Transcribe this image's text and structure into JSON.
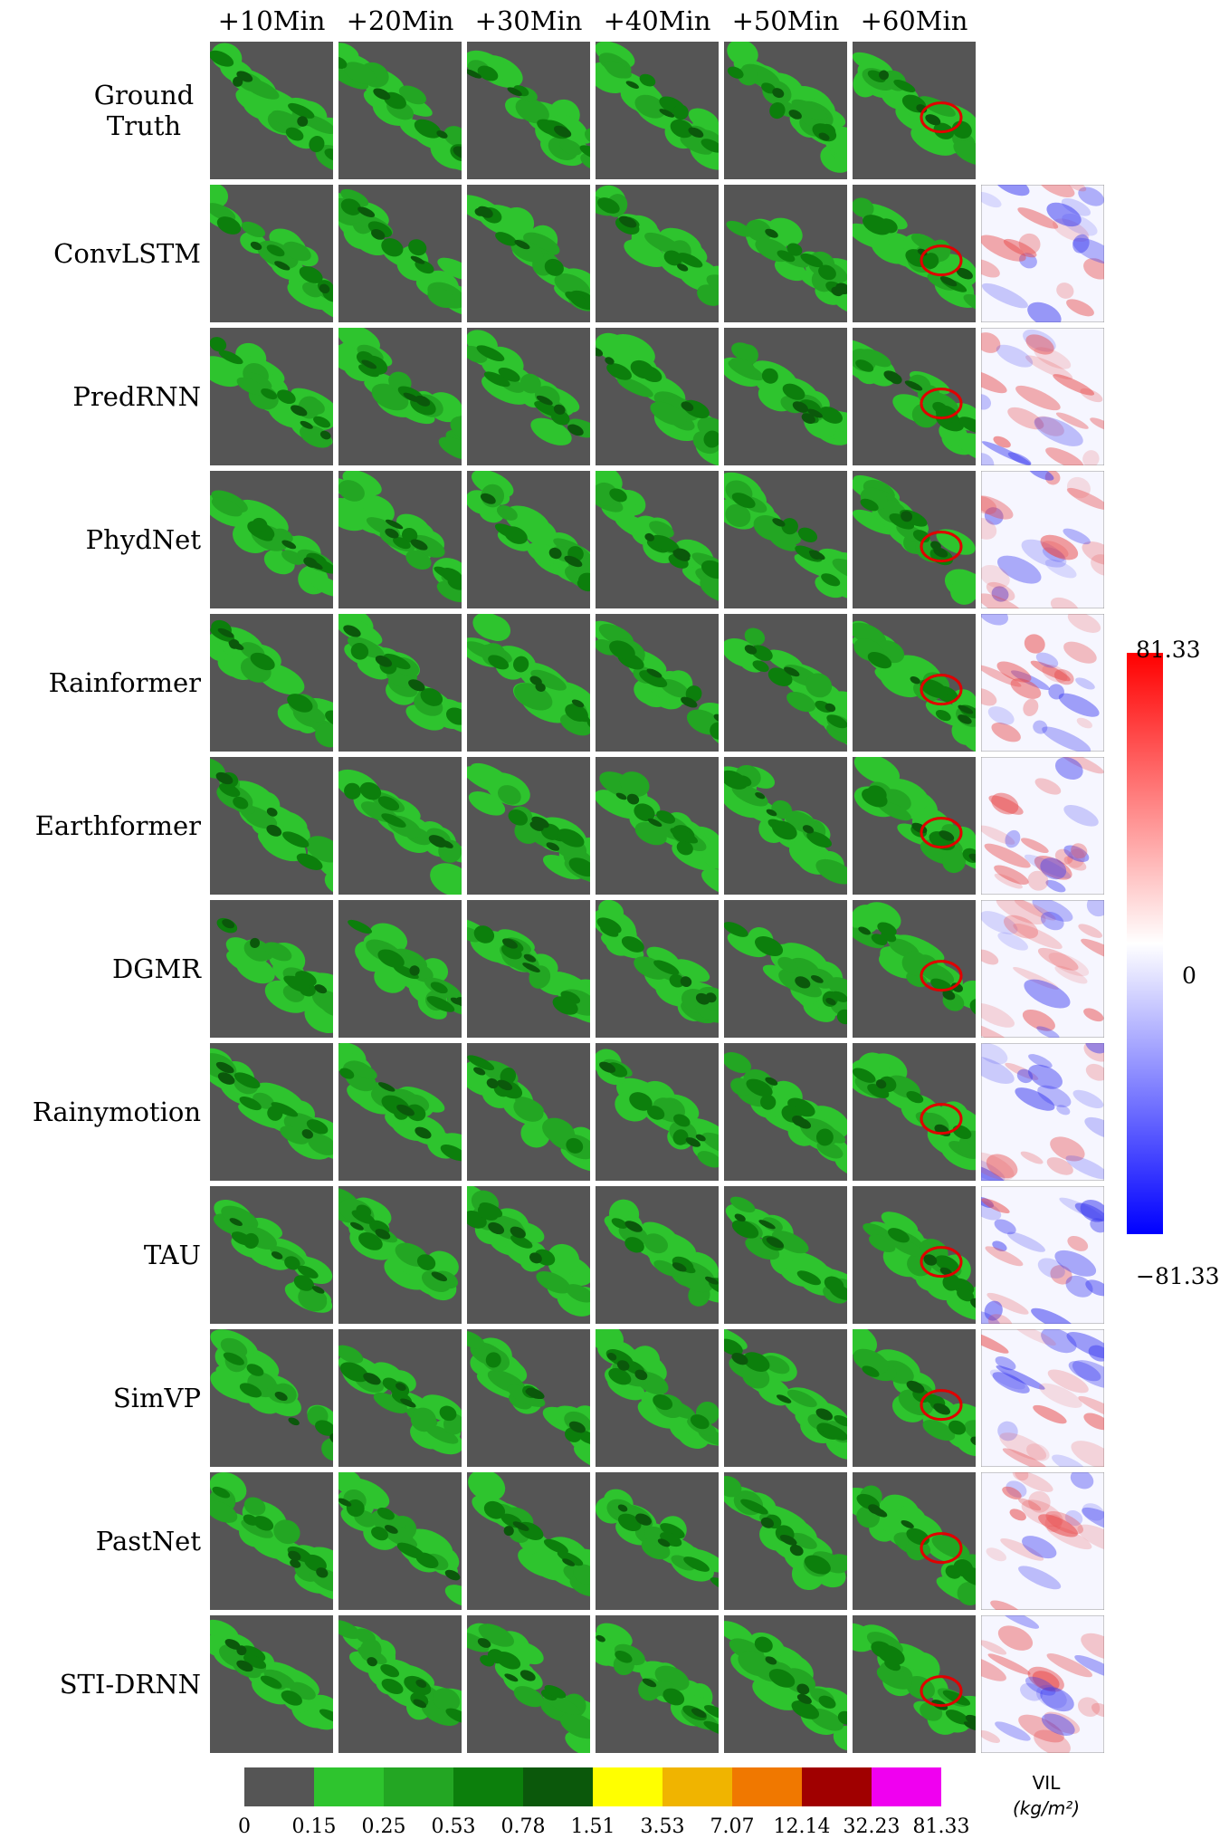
{
  "figure": {
    "columns": [
      "+10Min",
      "+20Min",
      "+30Min",
      "+40Min",
      "+50Min",
      "+60Min"
    ],
    "rows": [
      "Ground Truth",
      "ConvLSTM",
      "PredRNN",
      "PhydNet",
      "Rainformer",
      "Earthformer",
      "DGMR",
      "Rainymotion",
      "TAU",
      "SimVP",
      "PastNet",
      "STI-DRNN"
    ],
    "colorbar": {
      "colors": [
        "#555555",
        "#2ec42e",
        "#23a623",
        "#0c7f0c",
        "#0b580b",
        "#ffff00",
        "#f0b400",
        "#f07800",
        "#a00000",
        "#f000f0"
      ],
      "ticks": [
        "0",
        "0.15",
        "0.25",
        "0.53",
        "0.78",
        "1.51",
        "3.53",
        "7.07",
        "12.14",
        "32.23",
        "81.33"
      ],
      "label": "VIL",
      "unit": "(kg/m²)"
    },
    "diff_colorbar": {
      "ticks": [
        "81.33",
        "0",
        "−81.33"
      ]
    }
  }
}
